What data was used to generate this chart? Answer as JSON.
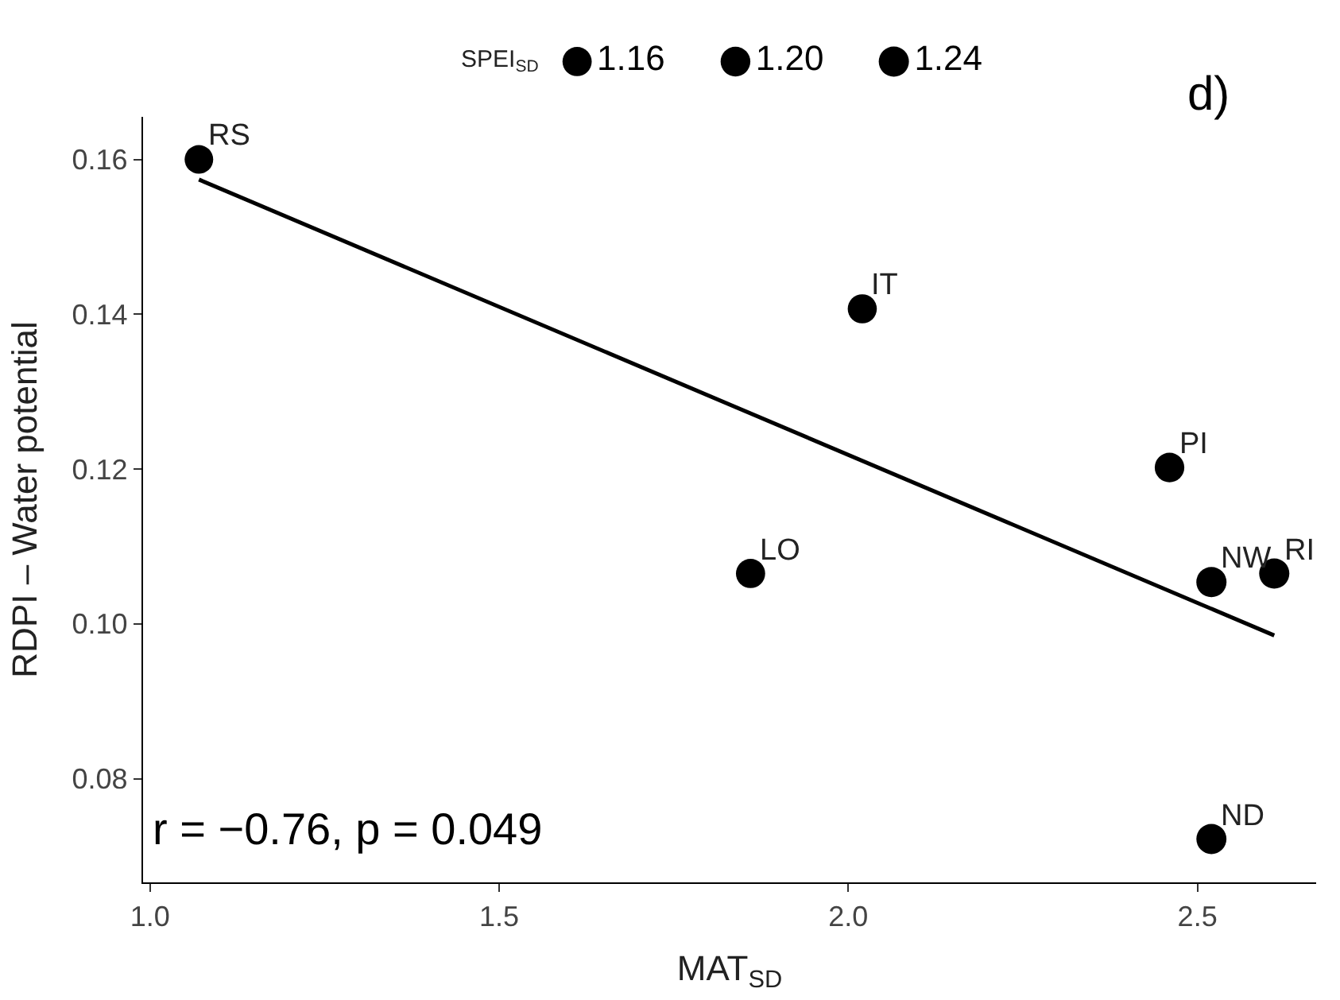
{
  "chart_data": {
    "type": "bubble",
    "xlabel": "MAT$_{SD}$",
    "ylabel": "RDPI – Water potential",
    "legend_title": "SPEI$_{SD}$",
    "x": [
      1.07,
      2.02,
      1.86,
      2.46,
      2.52,
      2.61,
      2.52
    ],
    "series": [
      {
        "color": "#000000",
        "values": [
          0.16,
          0.1407,
          0.1065,
          0.1202,
          0.1054,
          0.1065,
          0.0722
        ],
        "sizes": [
          1.11,
          1.15,
          1.16,
          1.19,
          1.24,
          1.24,
          1.23
        ]
      },
      {
        "type": "line",
        "color": "#000000",
        "x": [
          1.07,
          2.61
        ],
        "values": [
          0.1574,
          0.0985
        ],
        "marker": "none"
      }
    ],
    "size_legend": [
      1.16,
      {
        "value": 1.2,
        "label": "1.20"
      },
      1.24
    ],
    "xlim": [
      0.99,
      2.67
    ],
    "ylim": [
      0.0666,
      0.1655
    ],
    "xticks": [
      {
        "value": 1.0,
        "label": "1.0"
      },
      1.5,
      {
        "value": 2.0,
        "label": "2.0"
      },
      2.5
    ],
    "yticks": [
      0.08,
      {
        "value": 0.1,
        "label": "0.10"
      },
      0.12,
      0.14,
      0.16
    ],
    "annotations": [
      {
        "text": "RS",
        "x": 1.07,
        "y": 0.16
      },
      {
        "text": "IT",
        "x": 2.02,
        "y": 0.1407
      },
      {
        "text": "LO",
        "x": 1.86,
        "y": 0.1065
      },
      {
        "text": "PI",
        "x": 2.46,
        "y": 0.1202
      },
      {
        "text": "NW",
        "x": 2.52,
        "y": 0.1054
      },
      {
        "text": "RI",
        "x": 2.61,
        "y": 0.1065
      },
      {
        "text": "ND",
        "x": 2.52,
        "y": 0.0722
      },
      "d)",
      "r = −0.76, p = 0.049"
    ]
  }
}
